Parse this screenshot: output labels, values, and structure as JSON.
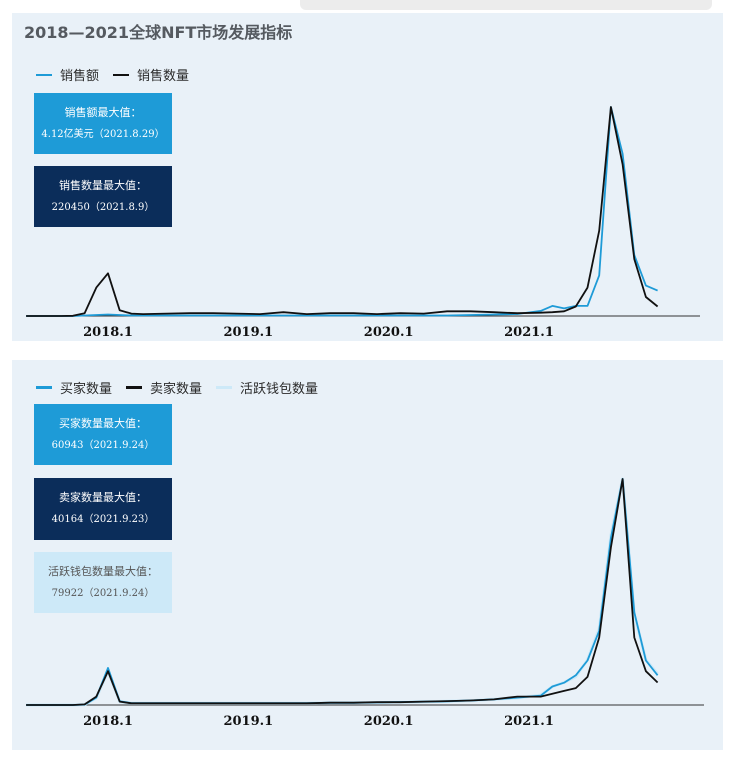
{
  "colors": {
    "panel_bg": "#e9f1f8",
    "light_blue": "#1e9bd7",
    "black": "#111111",
    "navy": "#0b2d5a",
    "pale_blue": "#cde9f8"
  },
  "top_panel": {
    "title": "2018—2021全球NFT市场发展指标",
    "legend": [
      "销售额",
      "销售数量"
    ],
    "boxes": [
      {
        "label": "销售额最大值：",
        "value": "4.12亿美元（2021.8.29）"
      },
      {
        "label": "销售数量最大值：",
        "value": "220450（2021.8.9）"
      }
    ]
  },
  "bottom_panel": {
    "legend": [
      "买家数量",
      "卖家数量",
      "活跃钱包数量"
    ],
    "boxes": [
      {
        "label": "买家数量最大值：",
        "value": "60943（2021.9.24）"
      },
      {
        "label": "卖家数量最大值：",
        "value": "40164（2021.9.23）"
      },
      {
        "label": "活跃钱包数量最大值：",
        "value": "79922（2021.9.24）"
      }
    ]
  },
  "chart_data": [
    {
      "type": "line",
      "title": "2018—2021全球NFT市场发展指标",
      "x_ticks": [
        "2018.1",
        "2019.1",
        "2020.1",
        "2021.1"
      ],
      "x": [
        "2017.6",
        "2017.7",
        "2017.8",
        "2017.9",
        "2017.10",
        "2017.11",
        "2017.12",
        "2018.1",
        "2018.2",
        "2018.3",
        "2018.4",
        "2018.6",
        "2018.8",
        "2018.10",
        "2018.12",
        "2019.2",
        "2019.4",
        "2019.6",
        "2019.8",
        "2019.10",
        "2019.12",
        "2020.2",
        "2020.4",
        "2020.6",
        "2020.8",
        "2020.10",
        "2020.12",
        "2021.2",
        "2021.3",
        "2021.4",
        "2021.5",
        "2021.6",
        "2021.7",
        "2021.8",
        "2021.9",
        "2021.10",
        "2021.11",
        "2021.12"
      ],
      "series": [
        {
          "name": "销售额",
          "color": "#1e9bd7",
          "values": [
            0,
            0,
            0,
            0,
            0,
            0.001,
            0.002,
            0.003,
            0.002,
            0.001,
            0.001,
            0.001,
            0.001,
            0.001,
            0.001,
            0.001,
            0.001,
            0.001,
            0.001,
            0.001,
            0.001,
            0.001,
            0.001,
            0.001,
            0.002,
            0.003,
            0.004,
            0.01,
            0.02,
            0.015,
            0.02,
            0.02,
            0.08,
            0.412,
            0.32,
            0.12,
            0.06,
            0.05
          ]
        },
        {
          "name": "销售数量",
          "color": "#111111",
          "values": [
            0,
            0,
            0,
            0,
            200,
            3000,
            30000,
            45000,
            6000,
            2500,
            2000,
            2500,
            3000,
            3000,
            2500,
            2000,
            4000,
            2000,
            3000,
            3000,
            2000,
            3000,
            2500,
            5000,
            5000,
            4000,
            3000,
            3500,
            4000,
            5000,
            10000,
            30000,
            90000,
            220450,
            160000,
            60000,
            20000,
            10000
          ]
        }
      ]
    },
    {
      "type": "line",
      "x_ticks": [
        "2018.1",
        "2019.1",
        "2020.1",
        "2021.1"
      ],
      "x": [
        "2017.6",
        "2017.7",
        "2017.8",
        "2017.9",
        "2017.10",
        "2017.11",
        "2017.12",
        "2018.1",
        "2018.2",
        "2018.3",
        "2018.4",
        "2018.6",
        "2018.8",
        "2018.10",
        "2018.12",
        "2019.2",
        "2019.4",
        "2019.6",
        "2019.8",
        "2019.10",
        "2019.12",
        "2020.2",
        "2020.4",
        "2020.6",
        "2020.8",
        "2020.10",
        "2020.12",
        "2021.2",
        "2021.3",
        "2021.4",
        "2021.5",
        "2021.6",
        "2021.7",
        "2021.8",
        "2021.9",
        "2021.10",
        "2021.11",
        "2021.12"
      ],
      "series": [
        {
          "name": "买家数量",
          "color": "#1e9bd7",
          "values": [
            0,
            0,
            0,
            0,
            0,
            100,
            2000,
            10000,
            1000,
            500,
            500,
            500,
            500,
            500,
            500,
            500,
            500,
            500,
            600,
            600,
            700,
            800,
            900,
            1000,
            1200,
            1500,
            2000,
            2500,
            5000,
            6000,
            8000,
            12000,
            20000,
            45000,
            60943,
            25000,
            12000,
            8000
          ]
        },
        {
          "name": "卖家数量",
          "color": "#111111",
          "values": [
            0,
            0,
            0,
            0,
            0,
            100,
            1500,
            6000,
            600,
            300,
            300,
            300,
            300,
            300,
            300,
            300,
            300,
            300,
            400,
            400,
            500,
            500,
            600,
            700,
            800,
            1000,
            1500,
            1500,
            2000,
            2500,
            3000,
            5000,
            12000,
            28000,
            40164,
            12000,
            6000,
            4000
          ]
        },
        {
          "name": "活跃钱包数量",
          "color": "#cde9f8",
          "values": [
            0,
            0,
            0,
            0,
            0,
            150,
            2500,
            12000,
            1200,
            600,
            600,
            600,
            600,
            600,
            600,
            600,
            600,
            600,
            800,
            800,
            900,
            1000,
            1100,
            1300,
            1500,
            2000,
            2500,
            3500,
            6500,
            8000,
            10000,
            16000,
            27000,
            60000,
            79922,
            32000,
            16000,
            11000
          ]
        }
      ]
    }
  ]
}
